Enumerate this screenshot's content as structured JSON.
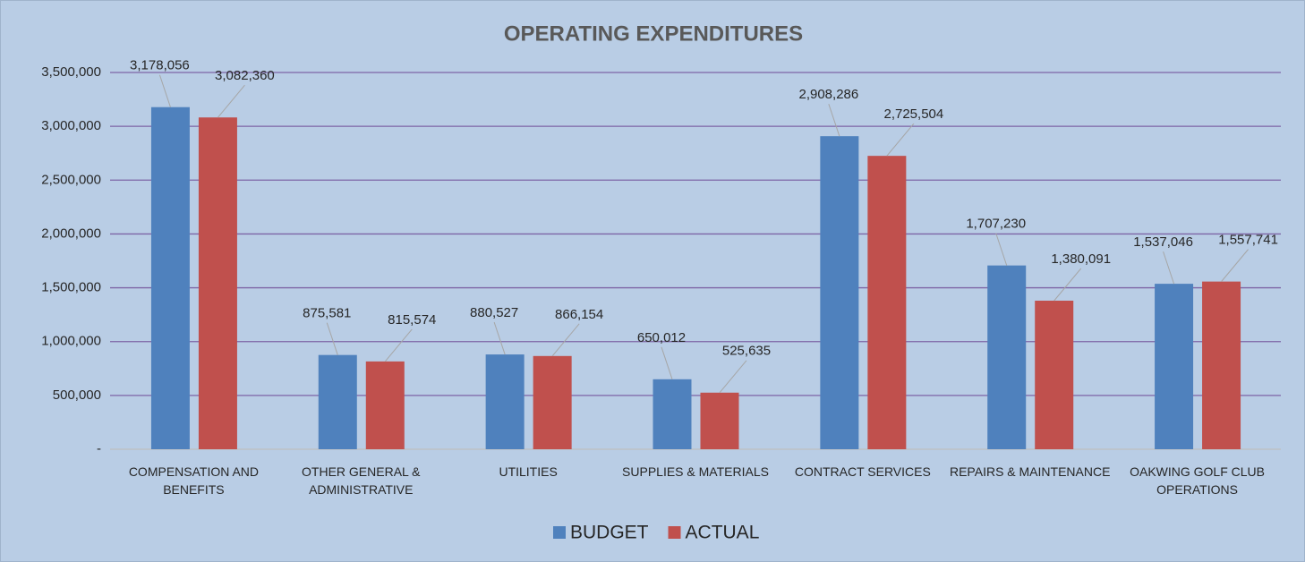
{
  "chart_data": {
    "type": "bar",
    "title": "OPERATING EXPENDITURES",
    "categories": [
      "COMPENSATION AND BENEFITS",
      "OTHER GENERAL & ADMINISTRATIVE",
      "UTILITIES",
      "SUPPLIES & MATERIALS",
      "CONTRACT SERVICES",
      "REPAIRS & MAINTENANCE",
      "OAKWING GOLF CLUB OPERATIONS"
    ],
    "series": [
      {
        "name": "BUDGET",
        "color": "#4f81bd",
        "values": [
          3178056,
          875581,
          880527,
          650012,
          2908286,
          1707230,
          1537046
        ],
        "value_labels": [
          "3,178,056",
          "875,581",
          "880,527",
          "650,012",
          "2,908,286",
          "1,707,230",
          "1,537,046"
        ]
      },
      {
        "name": "ACTUAL",
        "color": "#c0504d",
        "values": [
          3082360,
          815574,
          866154,
          525635,
          2725504,
          1380091,
          1557741
        ],
        "value_labels": [
          "3,082,360",
          "815,574",
          "866,154",
          "525,635",
          "2,725,504",
          "1,380,091",
          "1,557,741"
        ]
      }
    ],
    "ylim": [
      0,
      3500000
    ],
    "yticks": [
      {
        "value": 0,
        "label": "-"
      },
      {
        "value": 500000,
        "label": "500,000"
      },
      {
        "value": 1000000,
        "label": "1,000,000"
      },
      {
        "value": 1500000,
        "label": "1,500,000"
      },
      {
        "value": 2000000,
        "label": "2,000,000"
      },
      {
        "value": 2500000,
        "label": "2,500,000"
      },
      {
        "value": 3000000,
        "label": "3,000,000"
      },
      {
        "value": 3500000,
        "label": "3,500,000"
      }
    ],
    "grid": true,
    "legend": "bottom"
  }
}
